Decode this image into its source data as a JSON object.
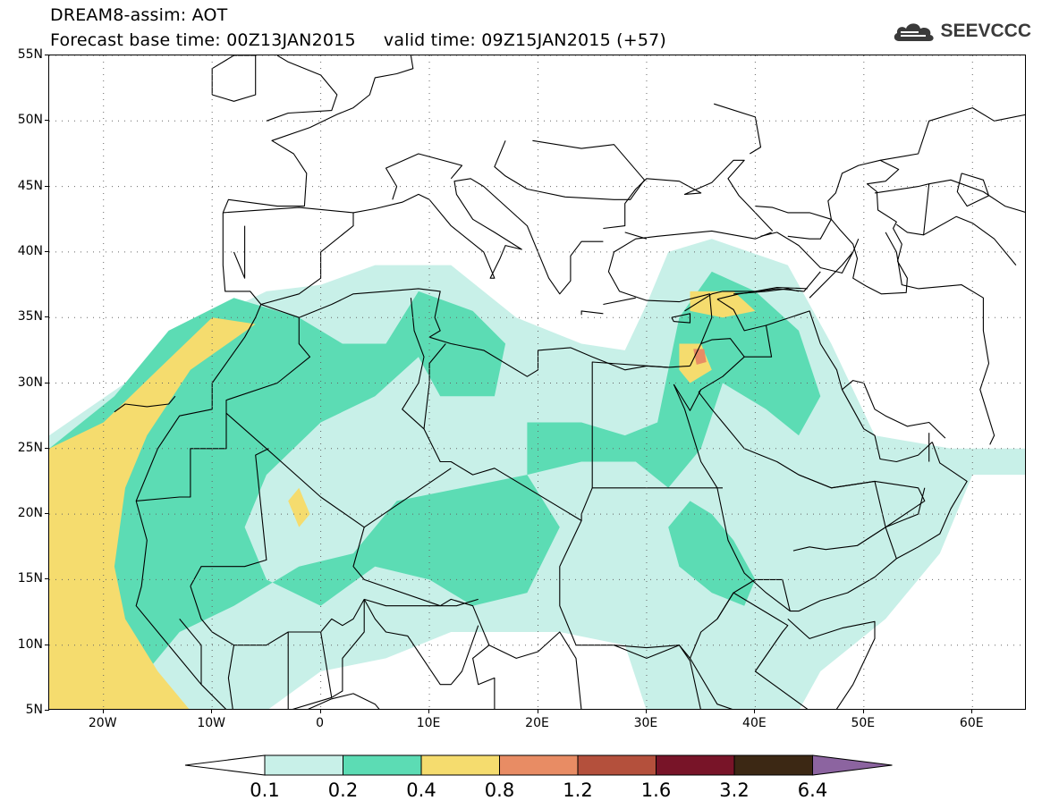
{
  "header": {
    "title_line1": "DREAM8-assim: AOT",
    "title_line2": "Forecast base time: 00Z13JAN2015     valid time: 09Z15JAN2015 (+57)"
  },
  "logo": {
    "text": "SEEVCCC",
    "icon": "cloud-icon"
  },
  "map": {
    "projection": "lat-lon",
    "lon_range": [
      -25,
      65
    ],
    "lat_range": [
      5,
      55
    ],
    "lat_labels": [
      "55N",
      "50N",
      "45N",
      "40N",
      "35N",
      "30N",
      "25N",
      "20N",
      "15N",
      "10N",
      "5N"
    ],
    "lat_values": [
      55,
      50,
      45,
      40,
      35,
      30,
      25,
      20,
      15,
      10,
      5
    ],
    "lon_labels": [
      "20W",
      "10W",
      "0",
      "10E",
      "20E",
      "30E",
      "40E",
      "50E",
      "60E"
    ],
    "lon_values": [
      -20,
      -10,
      0,
      10,
      20,
      30,
      40,
      50,
      60
    ],
    "gridlines": "dotted"
  },
  "colorbar": {
    "levels": [
      "0.1",
      "0.2",
      "0.4",
      "0.8",
      "1.2",
      "1.6",
      "3.2",
      "6.4"
    ],
    "colors": [
      "#c8f0e8",
      "#5cdcb4",
      "#f5dc6e",
      "#e88c64",
      "#b4503c",
      "#781428",
      "#3c2814",
      "#8c64a0"
    ],
    "extend": "both"
  },
  "colors": {
    "c1": "#c8f0e8",
    "c2": "#5cdcb4",
    "c3": "#f5dc6e",
    "c4": "#e88c64",
    "c5": "#b4503c"
  }
}
